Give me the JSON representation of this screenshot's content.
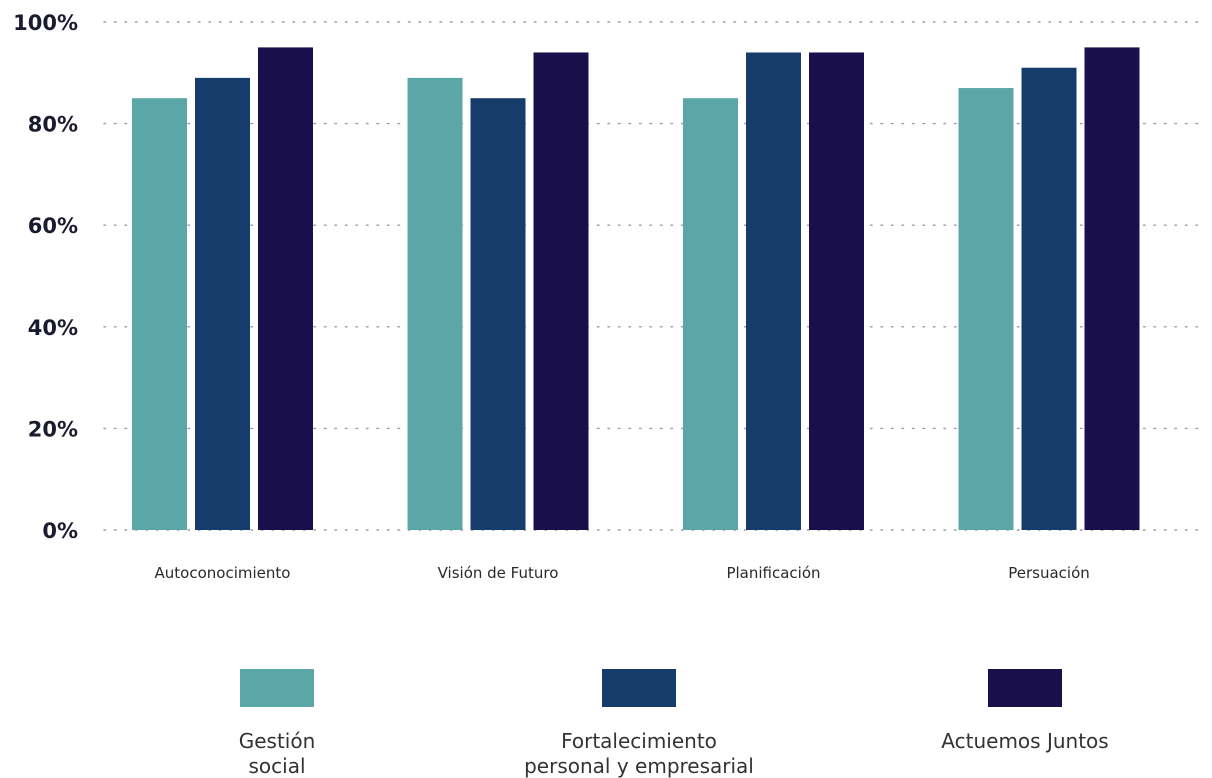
{
  "chart_data": {
    "type": "bar",
    "categories": [
      "Autoconocimiento",
      "Visión de Futuro",
      "Planificación",
      "Persuación"
    ],
    "series": [
      {
        "name": "Gestión social",
        "values": [
          85,
          89,
          85,
          87
        ],
        "color": "#5ba7a8"
      },
      {
        "name": "Fortalecimiento personal y empresarial",
        "values": [
          89,
          85,
          94,
          91
        ],
        "color": "#163c6b"
      },
      {
        "name": "Actuemos Juntos",
        "values": [
          95,
          94,
          94,
          95
        ],
        "color": "#180f4b"
      }
    ],
    "yticks": [
      "0%",
      "20%",
      "40%",
      "60%",
      "80%",
      "100%"
    ],
    "ylim": [
      0,
      100
    ],
    "grid": "dotted horizontal",
    "legend_position": "bottom",
    "legend_labels": [
      [
        "Gestión",
        "social"
      ],
      [
        "Fortalecimiento",
        "personal y empresarial"
      ],
      [
        "Actuemos Juntos"
      ]
    ]
  }
}
